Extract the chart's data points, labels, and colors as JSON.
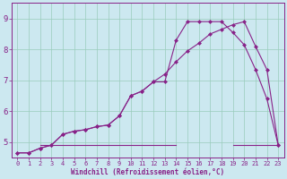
{
  "xlabel": "Windchill (Refroidissement éolien,°C)",
  "bg_color": "#cce8f0",
  "line_color": "#882288",
  "grid_color": "#99ccbb",
  "xlim": [
    -0.5,
    23.5
  ],
  "ylim": [
    4.5,
    9.5
  ],
  "yticks": [
    5,
    6,
    7,
    8,
    9
  ],
  "xticks": [
    0,
    1,
    2,
    3,
    4,
    5,
    6,
    7,
    8,
    9,
    10,
    11,
    12,
    13,
    14,
    15,
    16,
    17,
    18,
    19,
    20,
    21,
    22,
    23
  ],
  "curve1_x": [
    0,
    1,
    2,
    3,
    4,
    5,
    6,
    7,
    8,
    9,
    10,
    11,
    12,
    13,
    14,
    15,
    16,
    17,
    18,
    19,
    20,
    21,
    22,
    23
  ],
  "curve1_y": [
    4.65,
    4.65,
    4.8,
    4.9,
    5.25,
    5.35,
    5.4,
    5.5,
    5.55,
    5.85,
    6.5,
    6.65,
    6.95,
    6.95,
    8.3,
    8.9,
    8.9,
    8.9,
    8.9,
    8.55,
    8.15,
    7.35,
    6.4,
    4.9
  ],
  "curve2_x": [
    0,
    1,
    2,
    3,
    4,
    5,
    6,
    7,
    8,
    9,
    10,
    11,
    12,
    13,
    14,
    15,
    16,
    17,
    18,
    19,
    20,
    21,
    22,
    23
  ],
  "curve2_y": [
    4.65,
    4.65,
    4.8,
    4.9,
    5.25,
    5.35,
    5.4,
    5.5,
    5.55,
    5.85,
    6.5,
    6.65,
    6.95,
    7.2,
    7.6,
    7.95,
    8.2,
    8.5,
    8.65,
    8.8,
    8.9,
    8.1,
    7.35,
    4.9
  ],
  "flat_line_x": [
    2,
    14,
    19,
    23
  ],
  "flat_line_y": [
    4.9,
    4.9,
    4.9,
    4.9
  ],
  "marker_size": 2.5,
  "line_width": 0.8,
  "xlabel_fontsize": 5.5,
  "xtick_fontsize": 5.0,
  "ytick_fontsize": 6.5
}
